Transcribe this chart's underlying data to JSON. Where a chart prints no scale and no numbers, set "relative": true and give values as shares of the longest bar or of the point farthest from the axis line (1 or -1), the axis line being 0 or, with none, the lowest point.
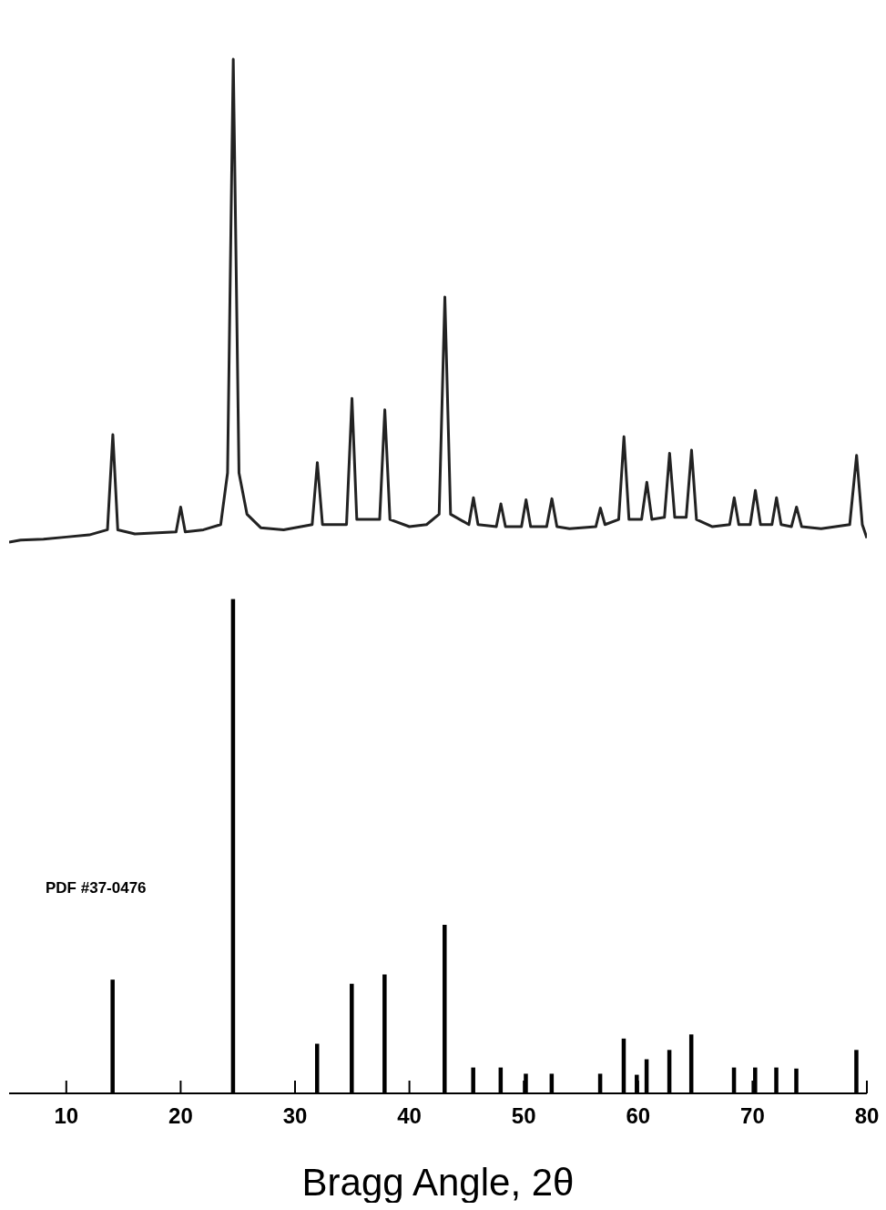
{
  "chart_data": {
    "type": "line",
    "relative": true,
    "xlabel": "Bragg Angle, 2θ",
    "xlim": [
      5,
      80
    ],
    "xticks": [
      10,
      20,
      30,
      40,
      50,
      60,
      70,
      80
    ],
    "marker": "none",
    "annotations": [
      "PDF #37-0476"
    ],
    "series": [
      {
        "color": "#222222",
        "x": [
          5,
          6,
          8,
          10,
          12,
          13.6,
          14.07,
          14.5,
          16,
          19.6,
          20,
          20.4,
          22,
          23.5,
          24.1,
          24.6,
          25.1,
          25.8,
          27,
          29,
          31.5,
          31.95,
          32.4,
          34.5,
          34.98,
          35.4,
          37.4,
          37.85,
          38.3,
          40,
          41.5,
          42.6,
          43.1,
          43.6,
          45.2,
          45.6,
          46,
          47.6,
          48,
          48.4,
          49.8,
          50.2,
          50.6,
          52,
          52.46,
          52.9,
          54,
          56.3,
          56.7,
          57.1,
          58.3,
          58.76,
          59.2,
          60.3,
          60.76,
          61.2,
          62.3,
          62.75,
          63.2,
          64.2,
          64.67,
          65.1,
          66.5,
          68,
          68.4,
          68.8,
          69.8,
          70.25,
          70.7,
          71.7,
          72.1,
          72.5,
          73.4,
          73.85,
          74.3,
          76,
          78.5,
          79.1,
          79.6,
          80
        ],
        "values": [
          0.533,
          0.535,
          0.536,
          0.538,
          0.54,
          0.545,
          0.637,
          0.545,
          0.541,
          0.543,
          0.567,
          0.543,
          0.545,
          0.55,
          0.6,
          1.0,
          0.6,
          0.56,
          0.547,
          0.545,
          0.55,
          0.61,
          0.55,
          0.55,
          0.672,
          0.555,
          0.555,
          0.661,
          0.555,
          0.548,
          0.55,
          0.56,
          0.77,
          0.56,
          0.55,
          0.576,
          0.55,
          0.548,
          0.57,
          0.548,
          0.548,
          0.574,
          0.548,
          0.548,
          0.575,
          0.548,
          0.546,
          0.548,
          0.566,
          0.55,
          0.555,
          0.635,
          0.555,
          0.555,
          0.591,
          0.555,
          0.557,
          0.619,
          0.557,
          0.557,
          0.622,
          0.555,
          0.548,
          0.55,
          0.576,
          0.55,
          0.55,
          0.583,
          0.55,
          0.55,
          0.576,
          0.55,
          0.548,
          0.567,
          0.548,
          0.546,
          0.55,
          0.617,
          0.55,
          0.537
        ]
      },
      {
        "type": "bar",
        "color": "#000000",
        "x": [
          14.07,
          24.6,
          31.95,
          34.98,
          37.85,
          43.1,
          45.6,
          48.0,
          50.2,
          52.46,
          56.7,
          58.76,
          59.9,
          60.76,
          62.75,
          64.67,
          68.4,
          70.25,
          72.1,
          73.85,
          79.1
        ],
        "values": [
          0.11,
          0.478,
          0.048,
          0.106,
          0.115,
          0.163,
          0.025,
          0.025,
          0.019,
          0.019,
          0.019,
          0.053,
          0.018,
          0.033,
          0.042,
          0.057,
          0.025,
          0.025,
          0.025,
          0.024,
          0.042
        ]
      }
    ]
  }
}
